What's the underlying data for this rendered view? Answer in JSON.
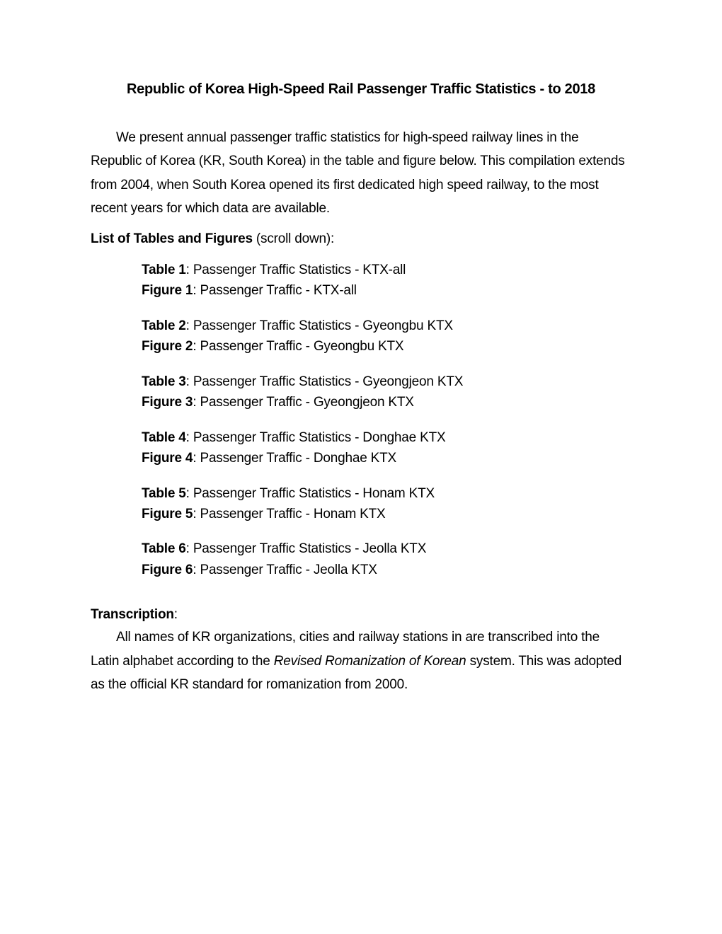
{
  "title": "Republic of Korea High-Speed Rail Passenger Traffic Statistics - to 2018",
  "intro": "We present annual passenger traffic statistics for high-speed railway lines in the Republic of Korea (KR, South Korea) in the table and figure below. This compilation extends from 2004, when South Korea opened its first dedicated high speed railway, to the most recent years for which data are available.",
  "listHeading": {
    "bold": "List of Tables and Figures",
    "rest": " (scroll down):"
  },
  "items": [
    {
      "tableLabel": "Table 1",
      "tableDesc": ": Passenger Traffic Statistics - KTX-all",
      "figureLabel": "Figure 1",
      "figureDesc": ": Passenger Traffic - KTX-all"
    },
    {
      "tableLabel": "Table 2",
      "tableDesc": ": Passenger Traffic Statistics - Gyeongbu KTX",
      "figureLabel": "Figure 2",
      "figureDesc": ": Passenger Traffic - Gyeongbu KTX"
    },
    {
      "tableLabel": "Table 3",
      "tableDesc": ": Passenger Traffic Statistics - Gyeongjeon KTX",
      "figureLabel": "Figure 3",
      "figureDesc": ": Passenger Traffic - Gyeongjeon KTX"
    },
    {
      "tableLabel": "Table 4",
      "tableDesc": ": Passenger Traffic Statistics - Donghae KTX",
      "figureLabel": "Figure 4",
      "figureDesc": ": Passenger Traffic - Donghae KTX"
    },
    {
      "tableLabel": "Table 5",
      "tableDesc": ": Passenger Traffic Statistics - Honam KTX",
      "figureLabel": "Figure 5",
      "figureDesc": ": Passenger Traffic - Honam KTX"
    },
    {
      "tableLabel": "Table 6",
      "tableDesc": ": Passenger Traffic Statistics - Jeolla KTX",
      "figureLabel": "Figure 6",
      "figureDesc": ": Passenger Traffic - Jeolla KTX"
    }
  ],
  "transcription": {
    "heading": "Transcription",
    "colon": ":",
    "text1": "All names of KR organizations, cities and railway stations in are transcribed into the Latin alphabet according to the ",
    "italic": "Revised Romanization of Korean",
    "text2": " system. This was adopted as the official KR standard for romanization from 2000."
  },
  "colors": {
    "background": "#ffffff",
    "text": "#000000"
  },
  "typography": {
    "titleFontSize": 20,
    "bodyFontSize": 19,
    "lineHeight": 1.75
  }
}
